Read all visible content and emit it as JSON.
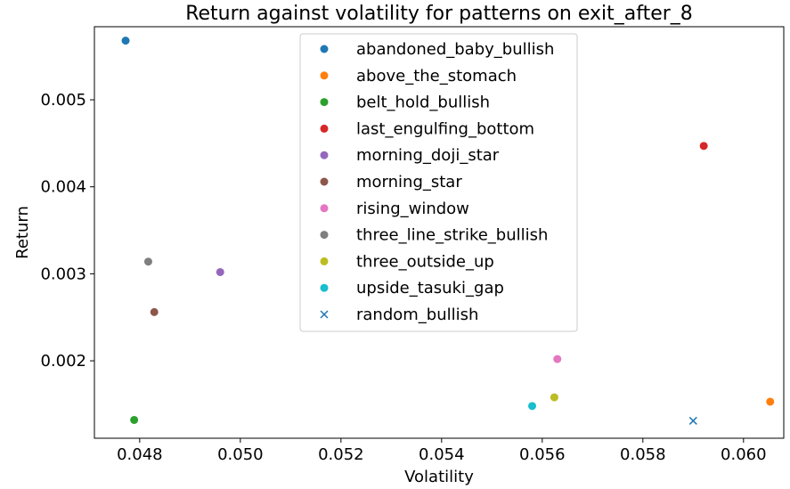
{
  "chart_data": {
    "type": "scatter",
    "title": "Return against volatility for patterns on exit_after_8",
    "xlabel": "Volatility",
    "ylabel": "Return",
    "xlim": [
      0.0471,
      0.0608
    ],
    "ylim": [
      0.00111,
      0.00584
    ],
    "xticks": [
      0.048,
      0.05,
      0.052,
      0.054,
      0.056,
      0.058,
      0.06
    ],
    "xtick_labels": [
      "0.048",
      "0.050",
      "0.052",
      "0.054",
      "0.056",
      "0.058",
      "0.060"
    ],
    "yticks": [
      0.002,
      0.003,
      0.004,
      0.005
    ],
    "ytick_labels": [
      "0.002",
      "0.003",
      "0.004",
      "0.005"
    ],
    "grid": false,
    "legend_position": "top-center",
    "series": [
      {
        "name": "abandoned_baby_bullish",
        "color": "#1f77b4",
        "marker": "circle",
        "x": 0.04772,
        "y": 0.00568
      },
      {
        "name": "above_the_stomach",
        "color": "#ff7f0e",
        "marker": "circle",
        "x": 0.06053,
        "y": 0.00153
      },
      {
        "name": "belt_hold_bullish",
        "color": "#2ca02c",
        "marker": "circle",
        "x": 0.04789,
        "y": 0.00132
      },
      {
        "name": "last_engulfing_bottom",
        "color": "#d62728",
        "marker": "circle",
        "x": 0.05921,
        "y": 0.00447
      },
      {
        "name": "morning_doji_star",
        "color": "#9467bd",
        "marker": "circle",
        "x": 0.0496,
        "y": 0.00302
      },
      {
        "name": "morning_star",
        "color": "#8c564b",
        "marker": "circle",
        "x": 0.04829,
        "y": 0.00256
      },
      {
        "name": "rising_window",
        "color": "#e377c2",
        "marker": "circle",
        "x": 0.0563,
        "y": 0.00202
      },
      {
        "name": "three_line_strike_bullish",
        "color": "#7f7f7f",
        "marker": "circle",
        "x": 0.04817,
        "y": 0.00314
      },
      {
        "name": "three_outside_up",
        "color": "#bcbd22",
        "marker": "circle",
        "x": 0.05624,
        "y": 0.00158
      },
      {
        "name": "upside_tasuki_gap",
        "color": "#17becf",
        "marker": "circle",
        "x": 0.0558,
        "y": 0.00148
      },
      {
        "name": "random_bullish",
        "color": "#1f77b4",
        "marker": "x",
        "x": 0.059,
        "y": 0.00131
      }
    ]
  }
}
